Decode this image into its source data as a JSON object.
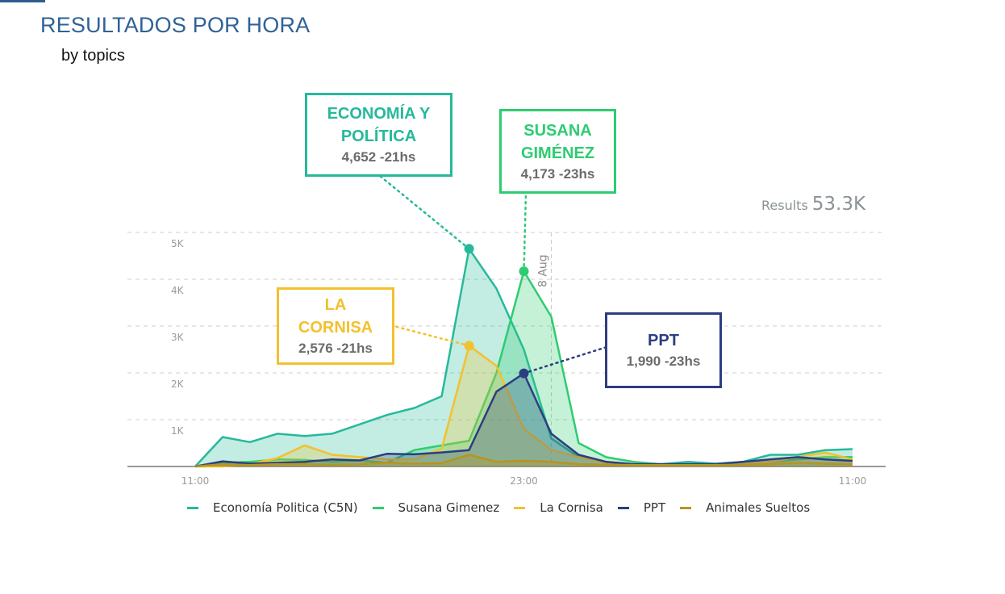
{
  "page": {
    "title": "RESULTADOS POR HORA",
    "subtitle": "by topics"
  },
  "results": {
    "label": "Results",
    "value": "53.3K"
  },
  "callouts": {
    "economia": {
      "title": "ECONOMÍA Y\nPOLÍTICA",
      "value": "4,652 -21hs",
      "color": "#26b99a"
    },
    "susana": {
      "title": "SUSANA\nGIMÉNEZ",
      "value": "4,173 -23hs",
      "color": "#2ecc71"
    },
    "cornisa": {
      "title": "LA\nCORNISA",
      "value": "2,576 -21hs",
      "color": "#f2c12e"
    },
    "ppt": {
      "title": "PPT",
      "value": "1,990 -23hs",
      "color": "#2c3e80"
    }
  },
  "chart_data": {
    "type": "area",
    "x": [
      0,
      1,
      2,
      3,
      4,
      5,
      6,
      7,
      8,
      9,
      10,
      11,
      12,
      13,
      14,
      15,
      16,
      17,
      18,
      19,
      20,
      21,
      22,
      23,
      24
    ],
    "x_tick_labels": [
      {
        "x": 0,
        "label": "11:00"
      },
      {
        "x": 12,
        "label": "23:00"
      },
      {
        "x": 24,
        "label": "11:00"
      }
    ],
    "y_ticks": [
      {
        "value": 1000,
        "label": "1K"
      },
      {
        "value": 2000,
        "label": "2K"
      },
      {
        "value": 3000,
        "label": "3K"
      },
      {
        "value": 4000,
        "label": "4K"
      },
      {
        "value": 5000,
        "label": "5K"
      }
    ],
    "ylim": [
      0,
      5000
    ],
    "grid": true,
    "annotation_line": {
      "x": 13,
      "label": "8 Aug"
    },
    "legend_position": "bottom",
    "series": [
      {
        "name": "Economía Politica (C5N)",
        "color": "#26b99a",
        "values": [
          0,
          630,
          520,
          700,
          650,
          700,
          900,
          1100,
          1250,
          1500,
          4650,
          3800,
          2500,
          600,
          200,
          100,
          50,
          50,
          100,
          60,
          100,
          250,
          250,
          350,
          370
        ]
      },
      {
        "name": "Susana Gimenez",
        "color": "#2ecc71",
        "values": [
          0,
          80,
          100,
          150,
          140,
          100,
          130,
          80,
          350,
          450,
          550,
          2000,
          4170,
          3200,
          500,
          200,
          100,
          50,
          50,
          50,
          50,
          100,
          150,
          200,
          200
        ]
      },
      {
        "name": "La Cornisa",
        "color": "#f2c12e",
        "values": [
          0,
          0,
          50,
          180,
          450,
          250,
          200,
          150,
          150,
          380,
          2580,
          2150,
          800,
          350,
          200,
          80,
          50,
          50,
          30,
          30,
          50,
          100,
          200,
          300,
          150
        ]
      },
      {
        "name": "PPT",
        "color": "#2c3e80",
        "values": [
          0,
          110,
          60,
          80,
          100,
          150,
          130,
          270,
          260,
          300,
          350,
          1600,
          1990,
          700,
          250,
          100,
          50,
          50,
          50,
          50,
          100,
          150,
          200,
          150,
          120
        ]
      },
      {
        "name": "Animales Sueltos",
        "color": "#b8941f",
        "values": [
          0,
          50,
          30,
          50,
          50,
          40,
          50,
          80,
          60,
          70,
          250,
          100,
          120,
          100,
          50,
          40,
          30,
          30,
          30,
          30,
          40,
          50,
          80,
          60,
          50
        ]
      }
    ]
  }
}
